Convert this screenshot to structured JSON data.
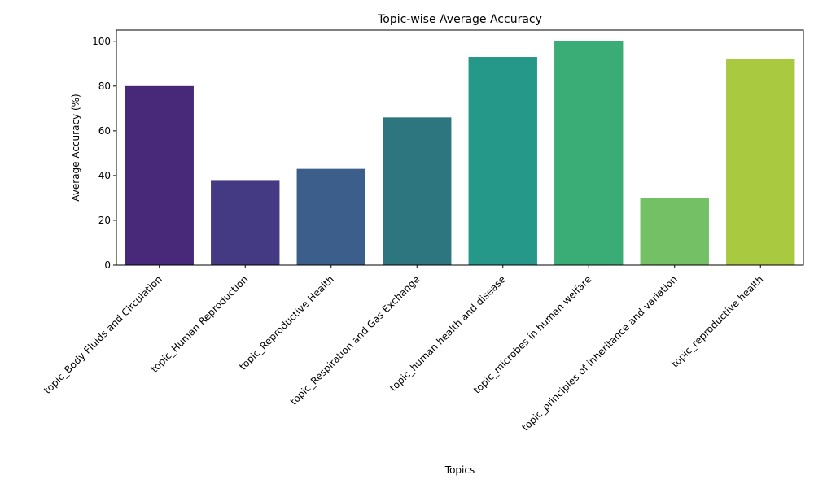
{
  "chart_data": {
    "type": "bar",
    "title": "Topic-wise Average Accuracy",
    "xlabel": "Topics",
    "ylabel": "Average Accuracy (%)",
    "ylim": [
      0,
      105
    ],
    "yticks": [
      0,
      20,
      40,
      60,
      80,
      100
    ],
    "grid": false,
    "categories": [
      "topic_Body Fluids and Circulation",
      "topic_Human Reproduction",
      "topic_Reproductive Health",
      "topic_Respiration and Gas Exchange",
      "topic_human health and disease",
      "topic_microbes in human welfare",
      "topic_principles of inheritance and variation",
      "topic_reproductive health"
    ],
    "values": [
      80,
      38,
      43,
      66,
      93,
      100,
      30,
      92
    ],
    "colors": [
      "#482878",
      "#443983",
      "#3b5f8a",
      "#2d7680",
      "#25988a",
      "#3aac76",
      "#74c064",
      "#a8c940"
    ]
  }
}
